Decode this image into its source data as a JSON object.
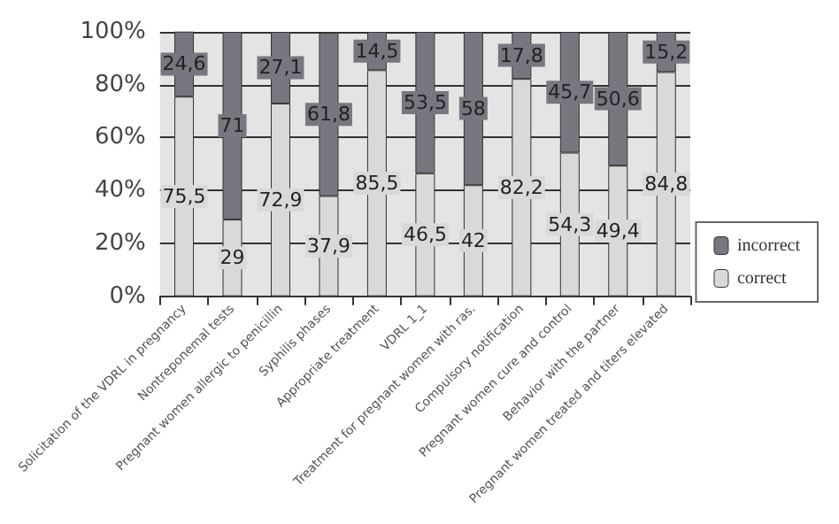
{
  "chart_data": {
    "type": "bar",
    "stacked": true,
    "categories": [
      "Solicitation of the VDRL in pregnancy",
      "Nontreponemal tests",
      "Pregnant women allergic to penicillin",
      "Syphilis phases",
      "Appropriate treatment",
      "VDRL 1_1",
      "Treatment for pregnant women with ras.",
      "Compulsory notification",
      "Pregnant women cure and control",
      "Behavior with the partner",
      "Pregnant women treated and titers elevated"
    ],
    "series": [
      {
        "name": "correct",
        "color": "#d9d9d9",
        "values": [
          75.5,
          29,
          72.9,
          37.9,
          85.5,
          46.5,
          42,
          82.2,
          54.3,
          49.4,
          84.8
        ],
        "value_labels": [
          "75,5",
          "29",
          "72,9",
          "37,9",
          "85,5",
          "46,5",
          "42",
          "82,2",
          "54,3",
          "49,4",
          "84,8"
        ]
      },
      {
        "name": "incorrect",
        "color": "#77777f",
        "values": [
          24.6,
          71,
          27.1,
          61.8,
          14.5,
          53.5,
          58,
          17.8,
          45.7,
          50.6,
          15.2
        ],
        "value_labels": [
          "24,6",
          "71",
          "27,1",
          "61,8",
          "14,5",
          "53,5",
          "58",
          "17,8",
          "45,7",
          "50,6",
          "15,2"
        ]
      }
    ],
    "ylim": [
      0,
      100
    ],
    "yticks": [
      {
        "value": 0,
        "label": "0%"
      },
      {
        "value": 20,
        "label": "20%"
      },
      {
        "value": 40,
        "label": "40%"
      },
      {
        "value": 60,
        "label": "60%"
      },
      {
        "value": 80,
        "label": "80%"
      },
      {
        "value": 100,
        "label": "100%"
      }
    ],
    "grid": "y",
    "legend": "right"
  }
}
